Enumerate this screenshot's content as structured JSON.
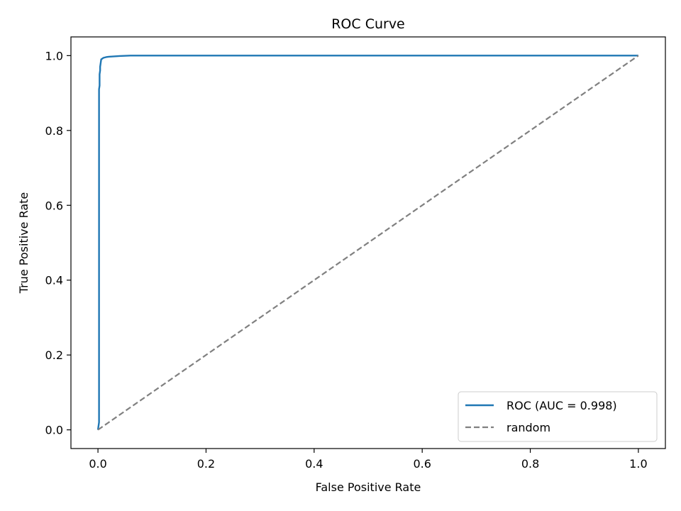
{
  "chart_data": {
    "type": "line",
    "title": "ROC Curve",
    "xlabel": "False Positive Rate",
    "ylabel": "True Positive Rate",
    "xlim": [
      -0.05,
      1.05
    ],
    "ylim": [
      -0.05,
      1.05
    ],
    "xticks": [
      0.0,
      0.2,
      0.4,
      0.6,
      0.8,
      1.0
    ],
    "xtick_labels": [
      "0.0",
      "0.2",
      "0.4",
      "0.6",
      "0.8",
      "1.0"
    ],
    "yticks": [
      0.0,
      0.2,
      0.4,
      0.6,
      0.8,
      1.0
    ],
    "ytick_labels": [
      "0.0",
      "0.2",
      "0.4",
      "0.6",
      "0.8",
      "1.0"
    ],
    "grid": false,
    "legend_position": "lower-right",
    "series": [
      {
        "name": "ROC (AUC = 0.998)",
        "color": "#1f77b4",
        "style": "solid",
        "x": [
          0.0,
          0.002,
          0.002,
          0.003,
          0.003,
          0.004,
          0.004,
          0.005,
          0.006,
          0.008,
          0.01,
          0.015,
          0.02,
          0.03,
          0.04,
          0.06,
          0.1,
          1.0
        ],
        "y": [
          0.0,
          0.02,
          0.91,
          0.92,
          0.95,
          0.96,
          0.97,
          0.98,
          0.99,
          0.992,
          0.994,
          0.996,
          0.997,
          0.998,
          0.999,
          1.0,
          1.0,
          1.0
        ]
      },
      {
        "name": "random",
        "color": "#808080",
        "style": "dashed",
        "x": [
          0.0,
          1.0
        ],
        "y": [
          0.0,
          1.0
        ]
      }
    ]
  }
}
